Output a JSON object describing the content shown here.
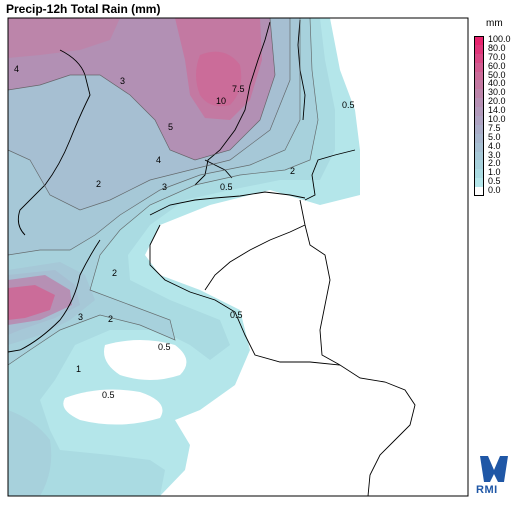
{
  "header": {
    "title": "Precip-12h Total Rain (mm)"
  },
  "legend": {
    "unit": "mm",
    "levels": [
      {
        "label": "100.0",
        "color": "#e8246e"
      },
      {
        "label": "80.0",
        "color": "#e0367a"
      },
      {
        "label": "70.0",
        "color": "#d94a86"
      },
      {
        "label": "60.0",
        "color": "#d15d91"
      },
      {
        "label": "50.0",
        "color": "#cb6c99"
      },
      {
        "label": "40.0",
        "color": "#c379a2"
      },
      {
        "label": "30.0",
        "color": "#bc85aa"
      },
      {
        "label": "20.0",
        "color": "#b690b4"
      },
      {
        "label": "14.0",
        "color": "#b29abb"
      },
      {
        "label": "10.0",
        "color": "#aea3c2"
      },
      {
        "label": "7.5",
        "color": "#aaadc8"
      },
      {
        "label": "5.0",
        "color": "#a7b6cd"
      },
      {
        "label": "4.0",
        "color": "#a6bfd2"
      },
      {
        "label": "3.0",
        "color": "#a6c8d7"
      },
      {
        "label": "2.0",
        "color": "#a7d1dc"
      },
      {
        "label": "1.0",
        "color": "#aadbe2"
      },
      {
        "label": "0.5",
        "color": "#b4e6ea"
      },
      {
        "label": "0.0",
        "color": "#ffffff"
      }
    ]
  },
  "map": {
    "contour_labels": [
      "4",
      "3",
      "10",
      "7.5",
      "5",
      "0.5",
      "4",
      "2",
      "3",
      "0.5",
      "2",
      "2",
      "3",
      "2",
      "0.5",
      "0.5",
      "1",
      "0.5"
    ]
  },
  "logo": {
    "text": "RMI"
  }
}
